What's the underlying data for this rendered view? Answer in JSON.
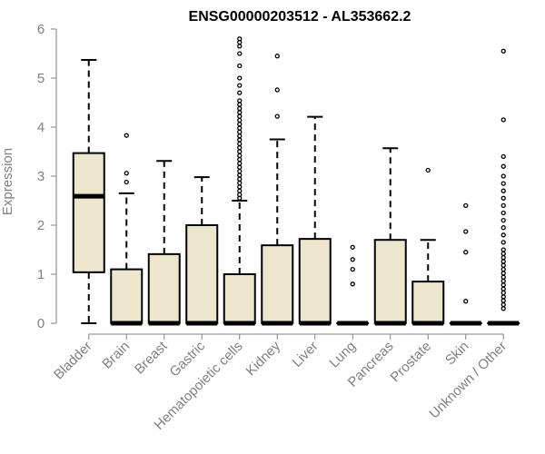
{
  "chart_data": {
    "type": "boxplot",
    "title": "ENSG00000203512 - AL353662.2",
    "ylabel": "Expression",
    "xlabel": "",
    "ylim": [
      0,
      6
    ],
    "yticks": [
      0,
      1,
      2,
      3,
      4,
      5,
      6
    ],
    "grid": false,
    "box_fill": "#ede6cd",
    "box_stroke": "#000000",
    "axis_color": "#808080",
    "categories": [
      "Bladder",
      "Brain",
      "Breast",
      "Gastric",
      "Hematopoietic cells",
      "Kidney",
      "Liver",
      "Lung",
      "Pancreas",
      "Prostate",
      "Skin",
      "Unknown / Other"
    ],
    "boxes": [
      {
        "category": "Bladder",
        "whisker_low": 0,
        "q1": 1.04,
        "median": 2.59,
        "q3": 3.47,
        "whisker_high": 5.37,
        "outliers": []
      },
      {
        "category": "Brain",
        "whisker_low": 0,
        "q1": 0,
        "median": 0,
        "q3": 1.1,
        "whisker_high": 2.65,
        "outliers": [
          2.88,
          3.06,
          3.83
        ]
      },
      {
        "category": "Breast",
        "whisker_low": 0,
        "q1": 0,
        "median": 0,
        "q3": 1.41,
        "whisker_high": 3.31,
        "outliers": []
      },
      {
        "category": "Gastric",
        "whisker_low": 0,
        "q1": 0,
        "median": 0,
        "q3": 2.0,
        "whisker_high": 2.98,
        "outliers": []
      },
      {
        "category": "Hematopoietic cells",
        "whisker_low": 0,
        "q1": 0,
        "median": 0,
        "q3": 1.0,
        "whisker_high": 2.5,
        "outliers": [
          2.55,
          2.62,
          2.7,
          2.78,
          2.86,
          2.94,
          3.02,
          3.1,
          3.18,
          3.26,
          3.34,
          3.42,
          3.5,
          3.58,
          3.66,
          3.74,
          3.82,
          3.9,
          3.98,
          4.06,
          4.14,
          4.22,
          4.3,
          4.38,
          4.46,
          4.54,
          4.7,
          4.85,
          5.0,
          5.25,
          5.5,
          5.65,
          5.73,
          5.8
        ]
      },
      {
        "category": "Kidney",
        "whisker_low": 0,
        "q1": 0,
        "median": 0,
        "q3": 1.59,
        "whisker_high": 3.75,
        "outliers": [
          4.22,
          4.76,
          5.45
        ]
      },
      {
        "category": "Liver",
        "whisker_low": 0,
        "q1": 0,
        "median": 0,
        "q3": 1.72,
        "whisker_high": 4.21,
        "outliers": []
      },
      {
        "category": "Lung",
        "whisker_low": 0,
        "q1": 0,
        "median": 0,
        "q3": 0,
        "whisker_high": 0,
        "outliers": [
          0.8,
          1.1,
          1.3,
          1.55
        ]
      },
      {
        "category": "Pancreas",
        "whisker_low": 0,
        "q1": 0,
        "median": 0,
        "q3": 1.7,
        "whisker_high": 3.57,
        "outliers": []
      },
      {
        "category": "Prostate",
        "whisker_low": 0,
        "q1": 0,
        "median": 0,
        "q3": 0.85,
        "whisker_high": 1.7,
        "outliers": [
          3.12
        ]
      },
      {
        "category": "Skin",
        "whisker_low": 0,
        "q1": 0,
        "median": 0,
        "q3": 0,
        "whisker_high": 0,
        "outliers": [
          0.45,
          1.45,
          1.87,
          2.4
        ]
      },
      {
        "category": "Unknown / Other",
        "whisker_low": 0,
        "q1": 0,
        "median": 0,
        "q3": 0,
        "whisker_high": 0,
        "outliers": [
          0.3,
          0.38,
          0.46,
          0.54,
          0.62,
          0.7,
          0.78,
          0.86,
          0.94,
          1.02,
          1.1,
          1.18,
          1.26,
          1.34,
          1.42,
          1.5,
          1.65,
          1.8,
          1.95,
          2.1,
          2.25,
          2.4,
          2.55,
          2.7,
          2.85,
          3.0,
          3.2,
          3.4,
          4.15,
          5.55
        ]
      }
    ]
  }
}
